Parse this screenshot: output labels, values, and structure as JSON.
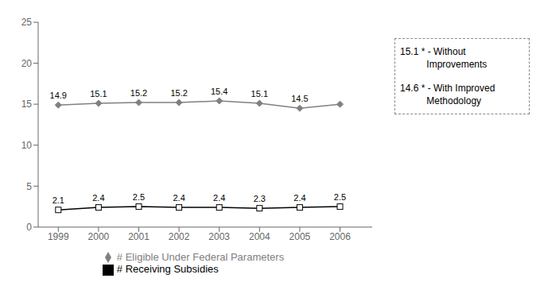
{
  "chart_data": {
    "type": "line",
    "x": [
      1999,
      2000,
      2001,
      2002,
      2003,
      2004,
      2005,
      2006
    ],
    "series": [
      {
        "name": "# Eligible Under Federal Parameters",
        "color": "#808080",
        "marker": "diamond",
        "values": [
          14.9,
          15.1,
          15.2,
          15.2,
          15.4,
          15.1,
          14.5,
          15.0
        ],
        "value_labels": [
          "14.9",
          "15.1",
          "15.2",
          "15.2",
          "15.4",
          "15.1",
          "14.5",
          null
        ]
      },
      {
        "name": "# Receiving Subsidies",
        "color": "#000000",
        "marker": "square",
        "values": [
          2.1,
          2.4,
          2.5,
          2.4,
          2.4,
          2.3,
          2.4,
          2.5
        ]
      }
    ],
    "xlim": [
      1998.5,
      2006.8
    ],
    "xticks": [
      1999,
      2000,
      2001,
      2002,
      2003,
      2004,
      2005,
      2006
    ],
    "ylim": [
      0,
      25
    ],
    "yticks": [
      0,
      5,
      10,
      15,
      20,
      25
    ],
    "grid": false,
    "data_labels": true,
    "annotations": [
      "15.1 * - Without\n          Improvements",
      "14.6 * - With Improved\n          Methodology"
    ]
  }
}
